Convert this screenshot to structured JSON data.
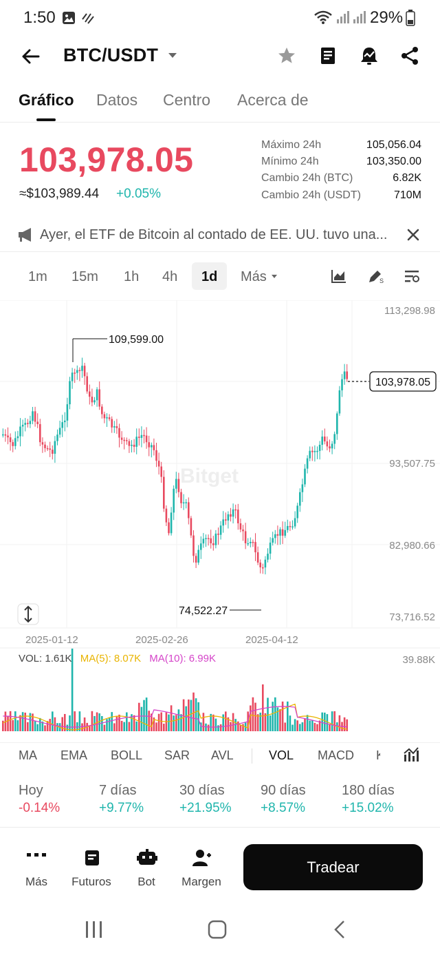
{
  "status_bar": {
    "time": "1:50",
    "battery": "29%"
  },
  "header": {
    "pair": "BTC/USDT"
  },
  "tabs": [
    {
      "label": "Gráfico"
    },
    {
      "label": "Datos"
    },
    {
      "label": "Centro"
    },
    {
      "label": "Acerca de"
    }
  ],
  "price": {
    "last": "103,978.05",
    "usd": "≈$103,989.44",
    "change": "+0.05%"
  },
  "stats": [
    {
      "label": "Máximo 24h",
      "value": "105,056.04"
    },
    {
      "label": "Mínimo 24h",
      "value": "103,350.00"
    },
    {
      "label": "Cambio 24h (BTC)",
      "value": "6.82K"
    },
    {
      "label": "Cambio 24h (USDT)",
      "value": "710M"
    }
  ],
  "news": {
    "text": "Ayer, el ETF de Bitcoin al contado de EE. UU. tuvo una..."
  },
  "intervals": [
    {
      "label": "1m"
    },
    {
      "label": "15m"
    },
    {
      "label": "1h"
    },
    {
      "label": "4h"
    },
    {
      "label": "1d"
    },
    {
      "label": "Más"
    }
  ],
  "chart_data": {
    "type": "candlestick",
    "interval": "1d",
    "watermark": "Bitget",
    "y_ticks": [
      "113,298.98",
      "93,507.75",
      "82,980.66",
      "73,716.52"
    ],
    "ylim": [
      73716.52,
      113298.98
    ],
    "x_ticks": [
      "2025-01-12",
      "2025-02-26",
      "2025-04-12"
    ],
    "annotations": {
      "high": "109,599.00",
      "low": "74,522.27",
      "last": "103,978.05"
    },
    "colors": {
      "up": "#1fb5ac",
      "down": "#e8495f"
    }
  },
  "volume": {
    "vol_label": "VOL: 1.61K",
    "ma5_label": "MA(5): 8.07K",
    "ma10_label": "MA(10): 6.99K",
    "max_label": "39.88K",
    "ma5_color": "#e9b400",
    "ma10_color": "#d545c9"
  },
  "indicators": [
    {
      "label": "MA"
    },
    {
      "label": "EMA"
    },
    {
      "label": "BOLL"
    },
    {
      "label": "SAR"
    },
    {
      "label": "AVL"
    },
    {
      "label": "VOL"
    },
    {
      "label": "MACD"
    },
    {
      "label": "K"
    }
  ],
  "performance": [
    {
      "label": "Hoy",
      "value": "-0.14%"
    },
    {
      "label": "7 días",
      "value": "+9.77%"
    },
    {
      "label": "30 días",
      "value": "+21.95%"
    },
    {
      "label": "90 días",
      "value": "+8.57%"
    },
    {
      "label": "180 días",
      "value": "+15.02%"
    }
  ],
  "bottom_nav": [
    {
      "label": "Más"
    },
    {
      "label": "Futuros"
    },
    {
      "label": "Bot"
    },
    {
      "label": "Margen"
    }
  ],
  "trade_button": "Tradear"
}
